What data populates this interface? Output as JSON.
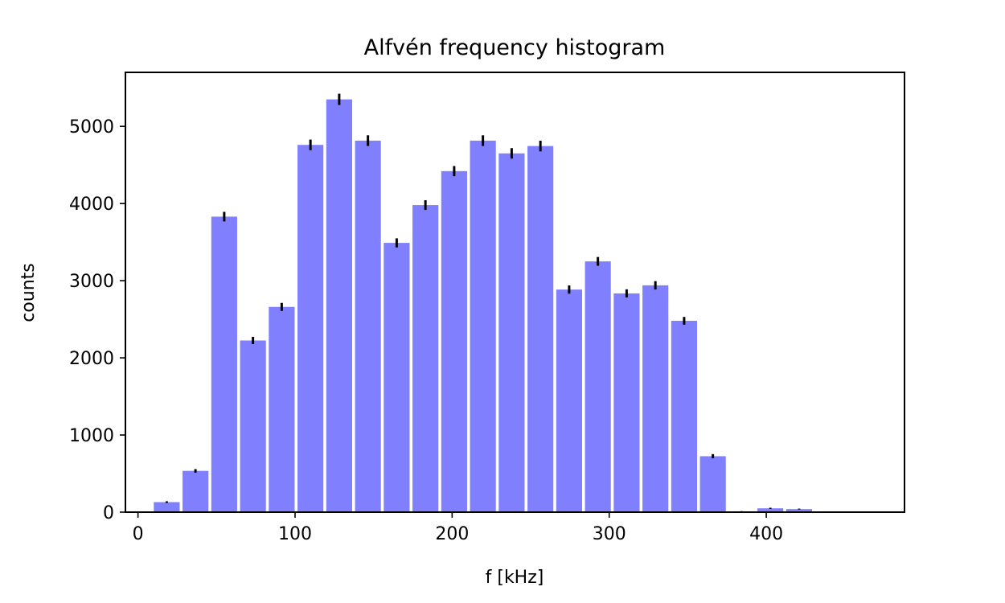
{
  "chart_data": {
    "type": "bar",
    "title": "Alfvén frequency histogram",
    "xlabel": "f [kHz]",
    "ylabel": "counts",
    "xlim": [
      -8,
      488
    ],
    "ylim": [
      0,
      5700
    ],
    "xticks": [
      "0",
      "100",
      "200",
      "300",
      "400"
    ],
    "yticks": [
      "0",
      "1000",
      "2000",
      "3000",
      "4000",
      "5000"
    ],
    "grid": false,
    "bar_color": "#8080ff",
    "errorbar_color": "#000000",
    "bin_width": 18.3,
    "bins": [
      {
        "x": 18.3,
        "value": 130,
        "error": 11
      },
      {
        "x": 36.6,
        "value": 535,
        "error": 23
      },
      {
        "x": 54.9,
        "value": 3830,
        "error": 62
      },
      {
        "x": 73.2,
        "value": 2225,
        "error": 47
      },
      {
        "x": 91.5,
        "value": 2660,
        "error": 52
      },
      {
        "x": 109.8,
        "value": 4760,
        "error": 69
      },
      {
        "x": 128.1,
        "value": 5350,
        "error": 73
      },
      {
        "x": 146.4,
        "value": 4815,
        "error": 69
      },
      {
        "x": 164.7,
        "value": 3490,
        "error": 59
      },
      {
        "x": 183.0,
        "value": 3980,
        "error": 63
      },
      {
        "x": 201.3,
        "value": 4420,
        "error": 66
      },
      {
        "x": 219.6,
        "value": 4815,
        "error": 69
      },
      {
        "x": 237.9,
        "value": 4650,
        "error": 68
      },
      {
        "x": 256.2,
        "value": 4745,
        "error": 69
      },
      {
        "x": 274.5,
        "value": 2885,
        "error": 54
      },
      {
        "x": 292.8,
        "value": 3250,
        "error": 57
      },
      {
        "x": 311.1,
        "value": 2835,
        "error": 53
      },
      {
        "x": 329.4,
        "value": 2940,
        "error": 54
      },
      {
        "x": 347.7,
        "value": 2480,
        "error": 50
      },
      {
        "x": 366.0,
        "value": 725,
        "error": 27
      },
      {
        "x": 384.3,
        "value": 10,
        "error": 3
      },
      {
        "x": 402.6,
        "value": 50,
        "error": 7
      },
      {
        "x": 420.9,
        "value": 40,
        "error": 6
      },
      {
        "x": 439.2,
        "value": 0,
        "error": 0
      },
      {
        "x": 457.5,
        "value": 5,
        "error": 2
      }
    ]
  }
}
